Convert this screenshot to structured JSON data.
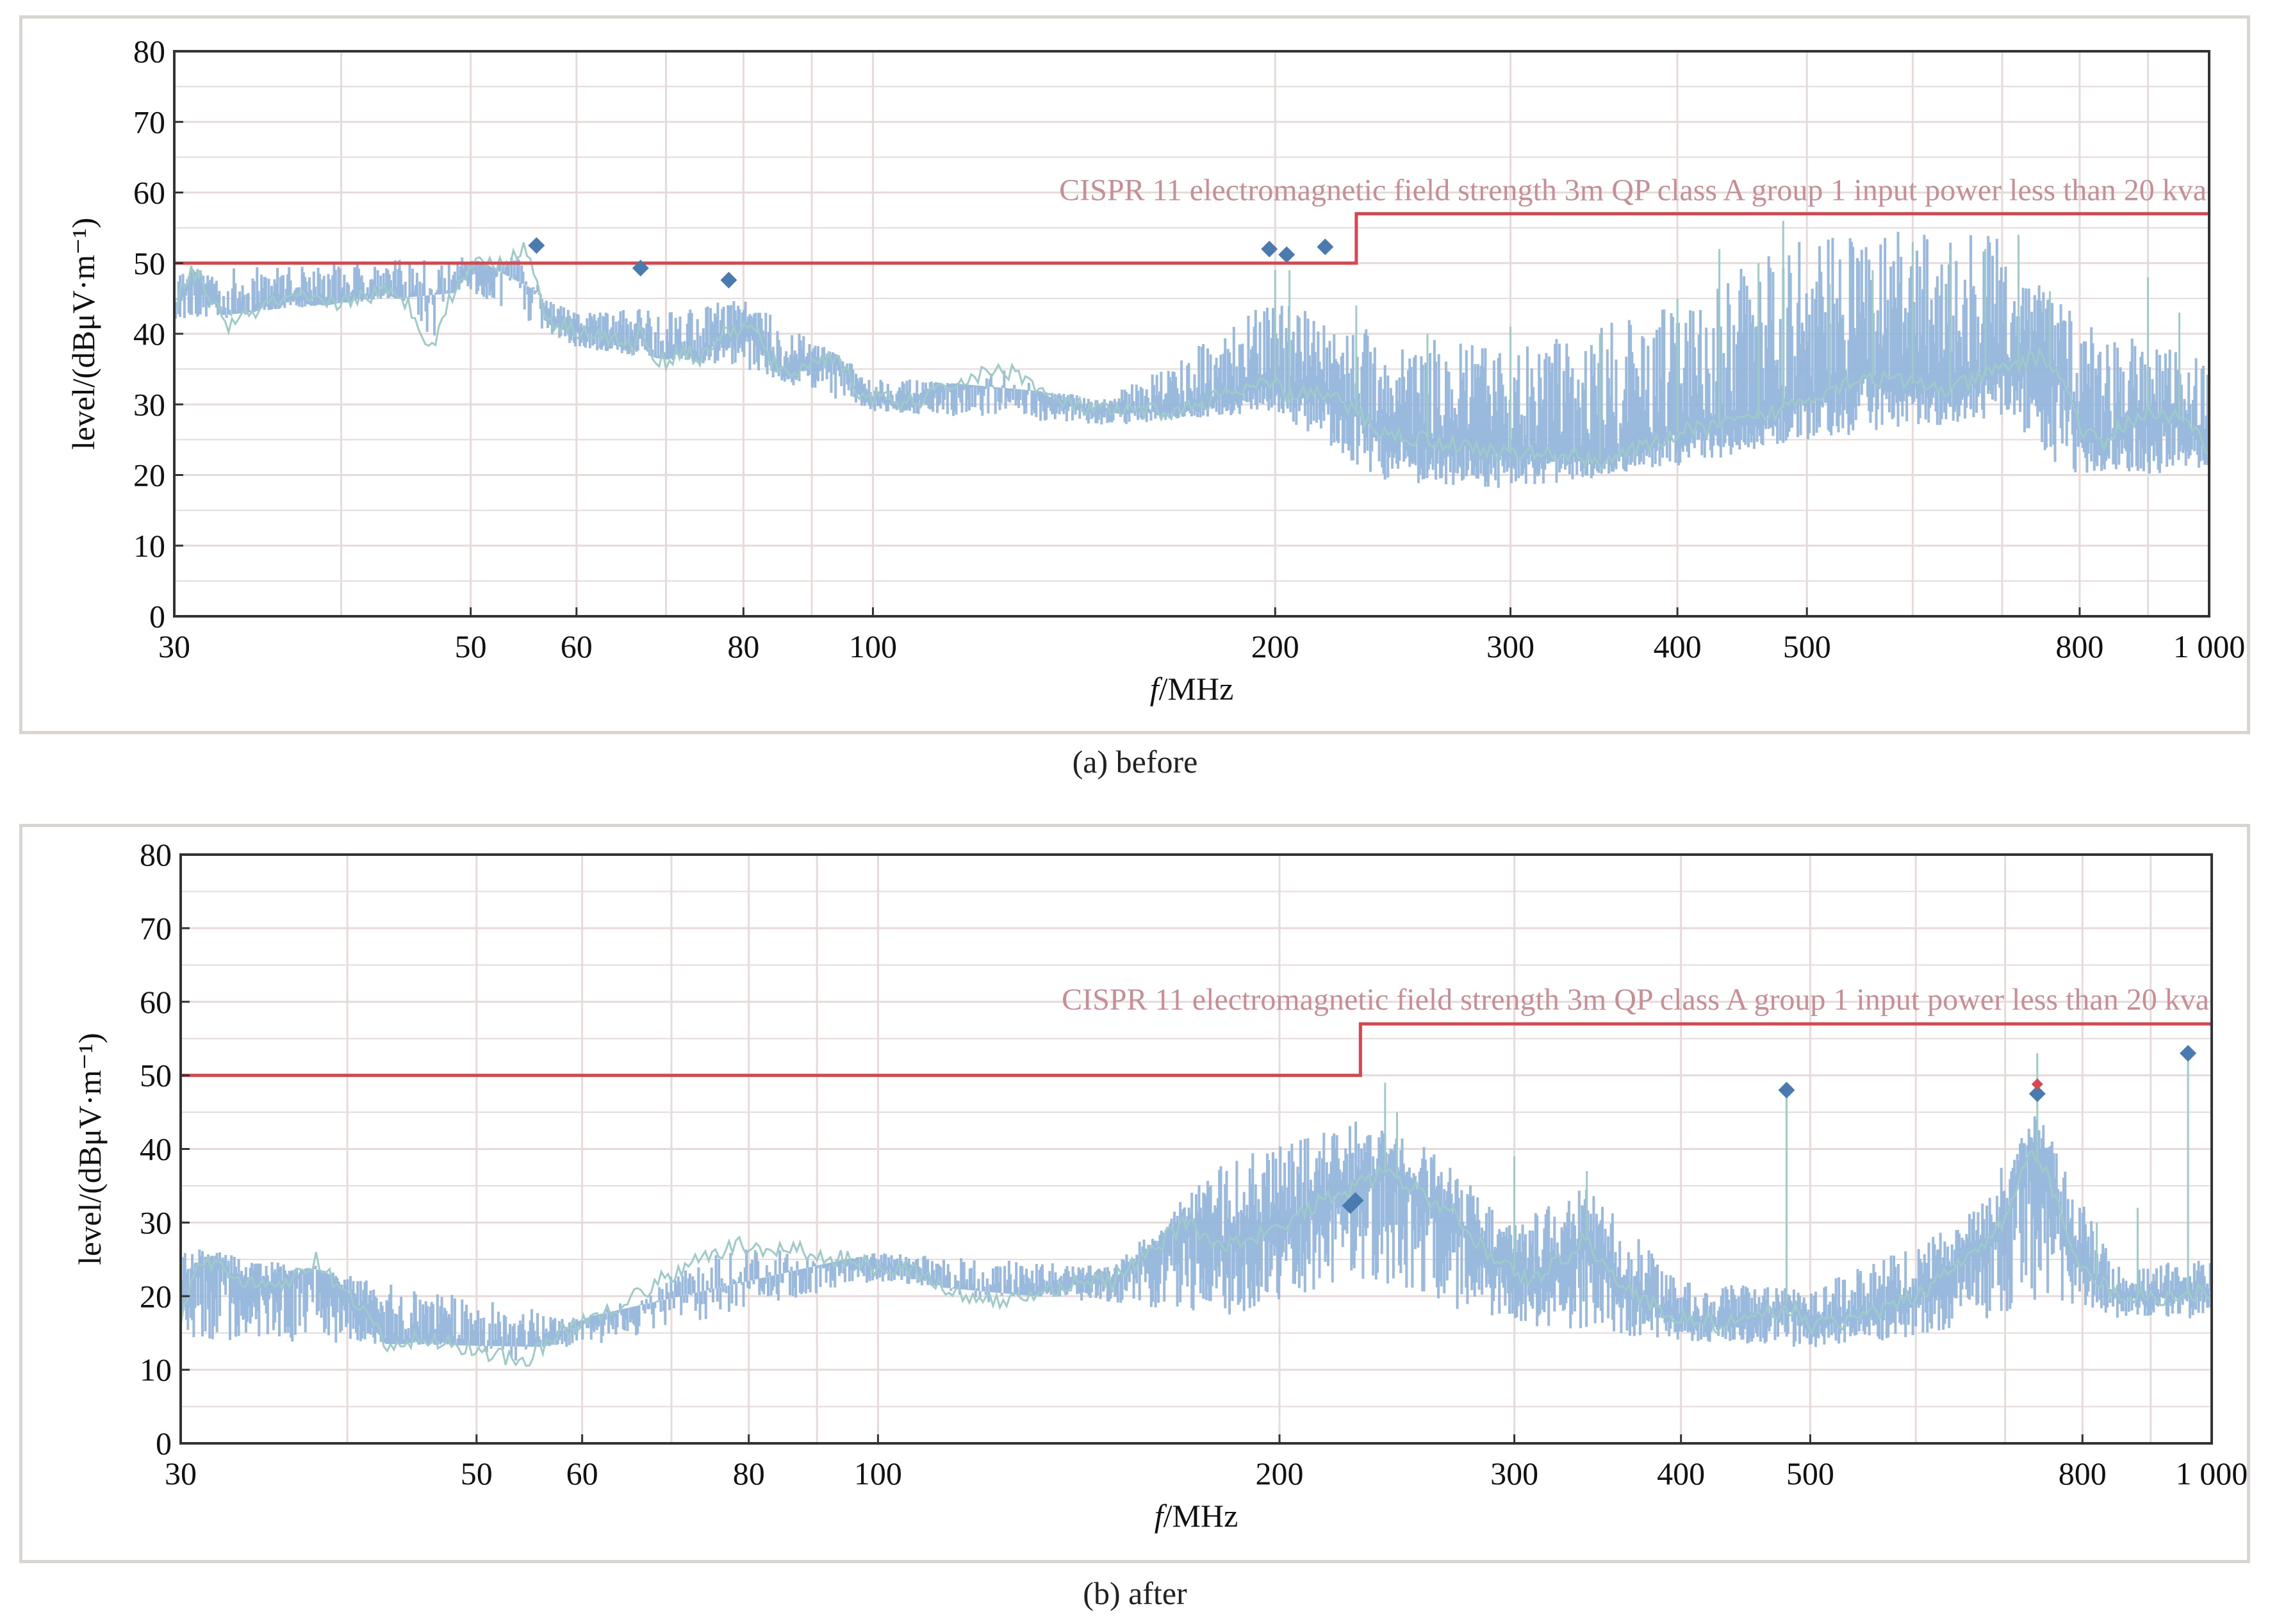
{
  "chart_data": [
    {
      "id": "a",
      "type": "line",
      "caption": "(a) before",
      "xlabel_italic": "f",
      "xlabel_rest": "/MHz",
      "ylabel": "level/(dBμV·m⁻¹)",
      "xscale": "log",
      "xlim": [
        30,
        1000
      ],
      "ylim": [
        0,
        80
      ],
      "xticks": [
        30,
        50,
        60,
        80,
        100,
        200,
        300,
        400,
        500,
        800,
        1000
      ],
      "xtick_labels": [
        "30",
        "50",
        "60",
        "80",
        "100",
        "200",
        "300",
        "400",
        "500",
        "800",
        "1 000"
      ],
      "yticks": [
        0,
        10,
        20,
        30,
        40,
        50,
        60,
        70,
        80
      ],
      "ytick_labels": [
        "0",
        "10",
        "20",
        "30",
        "40",
        "50",
        "60",
        "70",
        "80"
      ],
      "grid": true,
      "limit_label": "CISPR 11 electromagnetic field strength 3m QP class A group 1 input power less than 20 kva",
      "limit_line": [
        [
          30,
          50
        ],
        [
          230,
          50
        ],
        [
          230,
          57
        ],
        [
          1000,
          57
        ]
      ],
      "trace_envelope": [
        [
          30,
          44
        ],
        [
          31,
          49
        ],
        [
          32,
          45
        ],
        [
          33,
          41
        ],
        [
          35,
          44
        ],
        [
          37,
          45
        ],
        [
          39,
          44
        ],
        [
          41,
          45
        ],
        [
          43,
          46
        ],
        [
          45,
          44
        ],
        [
          46,
          40
        ],
        [
          47,
          39
        ],
        [
          48,
          44
        ],
        [
          50,
          50
        ],
        [
          52,
          50
        ],
        [
          54,
          51
        ],
        [
          55,
          52
        ],
        [
          56,
          48
        ],
        [
          57,
          42
        ],
        [
          59,
          41
        ],
        [
          62,
          40
        ],
        [
          64,
          39
        ],
        [
          66,
          38
        ],
        [
          67,
          41
        ],
        [
          68,
          37
        ],
        [
          70,
          36
        ],
        [
          72,
          38
        ],
        [
          74,
          36
        ],
        [
          76,
          39
        ],
        [
          78,
          40
        ],
        [
          80,
          41
        ],
        [
          82,
          40
        ],
        [
          84,
          36
        ],
        [
          86,
          34
        ],
        [
          90,
          36
        ],
        [
          94,
          37
        ],
        [
          97,
          32
        ],
        [
          100,
          31
        ],
        [
          105,
          30
        ],
        [
          110,
          31
        ],
        [
          115,
          33
        ],
        [
          120,
          34
        ],
        [
          125,
          35
        ],
        [
          130,
          34
        ],
        [
          135,
          31
        ],
        [
          140,
          30
        ],
        [
          150,
          29
        ],
        [
          160,
          29
        ],
        [
          170,
          29
        ],
        [
          180,
          31
        ],
        [
          190,
          32
        ],
        [
          200,
          33
        ],
        [
          205,
          31
        ],
        [
          210,
          32
        ],
        [
          220,
          31
        ],
        [
          230,
          29
        ],
        [
          240,
          26
        ],
        [
          260,
          25
        ],
        [
          280,
          24
        ],
        [
          300,
          23
        ],
        [
          330,
          23
        ],
        [
          350,
          22
        ],
        [
          380,
          24
        ],
        [
          400,
          26
        ],
        [
          430,
          27
        ],
        [
          460,
          28
        ],
        [
          500,
          31
        ],
        [
          550,
          34
        ],
        [
          600,
          33
        ],
        [
          640,
          32
        ],
        [
          700,
          35
        ],
        [
          750,
          37
        ],
        [
          780,
          33
        ],
        [
          800,
          27
        ],
        [
          830,
          24
        ],
        [
          860,
          27
        ],
        [
          900,
          29
        ],
        [
          950,
          28
        ],
        [
          1000,
          24
        ]
      ],
      "trace_low": [
        [
          30,
          42
        ],
        [
          50,
          46
        ],
        [
          60,
          38
        ],
        [
          80,
          35
        ],
        [
          100,
          29
        ],
        [
          150,
          27
        ],
        [
          200,
          29
        ],
        [
          240,
          19
        ],
        [
          300,
          18
        ],
        [
          400,
          21
        ],
        [
          500,
          25
        ],
        [
          700,
          28
        ],
        [
          800,
          19
        ],
        [
          1000,
          21
        ]
      ],
      "trace_high": [
        [
          30,
          49
        ],
        [
          50,
          51
        ],
        [
          60,
          43
        ],
        [
          80,
          45
        ],
        [
          100,
          34
        ],
        [
          150,
          31
        ],
        [
          200,
          45
        ],
        [
          240,
          40
        ],
        [
          300,
          38
        ],
        [
          400,
          44
        ],
        [
          500,
          55
        ],
        [
          700,
          54
        ],
        [
          800,
          42
        ],
        [
          1000,
          36
        ]
      ],
      "spikes": [
        [
          200,
          49
        ],
        [
          205,
          49
        ],
        [
          230,
          44
        ],
        [
          260,
          40
        ],
        [
          300,
          41
        ],
        [
          350,
          40
        ],
        [
          400,
          45
        ],
        [
          430,
          52
        ],
        [
          460,
          50
        ],
        [
          480,
          56
        ],
        [
          520,
          47
        ],
        [
          560,
          49
        ],
        [
          600,
          53
        ],
        [
          640,
          52
        ],
        [
          680,
          52
        ],
        [
          720,
          54
        ],
        [
          760,
          46
        ],
        [
          900,
          48
        ],
        [
          950,
          43
        ]
      ],
      "peaks": [
        [
          56,
          52.5
        ],
        [
          67,
          49.3
        ],
        [
          78,
          47.6
        ],
        [
          198,
          52
        ],
        [
          204,
          51.2
        ],
        [
          218,
          52.3
        ]
      ],
      "colors": {
        "limit": "#d9464f",
        "trace": "#8fb3d9",
        "trace_edge": "#9ecac8",
        "marker": "#4a7bb0",
        "grid": "#e6dada"
      }
    },
    {
      "id": "b",
      "type": "line",
      "caption": "(b) after",
      "xlabel_italic": "f",
      "xlabel_rest": "/MHz",
      "ylabel": "level/(dBμV·m⁻¹)",
      "xscale": "log",
      "xlim": [
        30,
        1000
      ],
      "ylim": [
        0,
        80
      ],
      "xticks": [
        30,
        50,
        60,
        80,
        100,
        200,
        300,
        400,
        500,
        800,
        1000
      ],
      "xtick_labels": [
        "30",
        "50",
        "60",
        "80",
        "100",
        "200",
        "300",
        "400",
        "500",
        "800",
        "1 000"
      ],
      "yticks": [
        0,
        10,
        20,
        30,
        40,
        50,
        60,
        70,
        80
      ],
      "ytick_labels": [
        "0",
        "10",
        "20",
        "30",
        "40",
        "50",
        "60",
        "70",
        "80"
      ],
      "grid": true,
      "limit_label": "CISPR 11 electromagnetic field strength 3m QP class A group 1 input power less than 20 kva",
      "limit_line": [
        [
          30,
          50
        ],
        [
          230,
          50
        ],
        [
          230,
          57
        ],
        [
          1000,
          57
        ]
      ],
      "trace_envelope": [
        [
          30,
          17
        ],
        [
          31,
          24
        ],
        [
          32,
          25
        ],
        [
          33,
          22
        ],
        [
          35,
          21
        ],
        [
          37,
          23
        ],
        [
          38,
          25
        ],
        [
          39,
          22
        ],
        [
          41,
          18
        ],
        [
          43,
          13
        ],
        [
          45,
          14
        ],
        [
          47,
          14
        ],
        [
          49,
          13
        ],
        [
          52,
          12
        ],
        [
          54,
          11
        ],
        [
          56,
          13
        ],
        [
          58,
          15
        ],
        [
          62,
          18
        ],
        [
          66,
          20
        ],
        [
          70,
          23
        ],
        [
          74,
          25
        ],
        [
          78,
          27
        ],
        [
          82,
          26
        ],
        [
          86,
          27
        ],
        [
          90,
          25
        ],
        [
          95,
          25
        ],
        [
          100,
          24
        ],
        [
          105,
          24
        ],
        [
          110,
          22
        ],
        [
          115,
          20
        ],
        [
          120,
          19
        ],
        [
          130,
          20
        ],
        [
          140,
          22
        ],
        [
          150,
          22
        ],
        [
          160,
          26
        ],
        [
          170,
          30
        ],
        [
          180,
          27
        ],
        [
          190,
          28
        ],
        [
          200,
          29
        ],
        [
          215,
          33
        ],
        [
          230,
          35
        ],
        [
          240,
          37
        ],
        [
          250,
          35
        ],
        [
          270,
          31
        ],
        [
          290,
          25
        ],
        [
          310,
          22
        ],
        [
          330,
          26
        ],
        [
          340,
          28
        ],
        [
          350,
          24
        ],
        [
          370,
          20
        ],
        [
          400,
          17
        ],
        [
          430,
          16
        ],
        [
          460,
          17
        ],
        [
          480,
          19
        ],
        [
          500,
          16
        ],
        [
          550,
          17
        ],
        [
          600,
          20
        ],
        [
          650,
          25
        ],
        [
          700,
          30
        ],
        [
          730,
          40
        ],
        [
          750,
          37
        ],
        [
          780,
          28
        ],
        [
          800,
          24
        ],
        [
          850,
          20
        ],
        [
          900,
          20
        ],
        [
          950,
          20
        ],
        [
          1000,
          21
        ]
      ],
      "trace_low": [
        [
          30,
          14
        ],
        [
          60,
          13
        ],
        [
          100,
          22
        ],
        [
          150,
          19
        ],
        [
          180,
          17
        ],
        [
          230,
          22
        ],
        [
          300,
          16
        ],
        [
          400,
          14
        ],
        [
          500,
          13
        ],
        [
          650,
          15
        ],
        [
          750,
          20
        ],
        [
          850,
          17
        ],
        [
          1000,
          17
        ]
      ],
      "trace_high": [
        [
          30,
          27
        ],
        [
          60,
          17
        ],
        [
          100,
          26
        ],
        [
          150,
          24
        ],
        [
          180,
          38
        ],
        [
          230,
          44
        ],
        [
          260,
          40
        ],
        [
          300,
          30
        ],
        [
          340,
          35
        ],
        [
          400,
          22
        ],
        [
          500,
          21
        ],
        [
          650,
          30
        ],
        [
          740,
          45
        ],
        [
          850,
          24
        ],
        [
          1000,
          25
        ]
      ],
      "spikes": [
        [
          240,
          49
        ],
        [
          245,
          45
        ],
        [
          300,
          39
        ],
        [
          340,
          37
        ],
        [
          480,
          48
        ],
        [
          740,
          53
        ],
        [
          960,
          54
        ],
        [
          880,
          32
        ],
        [
          820,
          30
        ]
      ],
      "peaks": [
        [
          226,
          32.3
        ],
        [
          228,
          33
        ],
        [
          480,
          48
        ],
        [
          740,
          47.5
        ],
        [
          960,
          53
        ]
      ],
      "peaks_red": [
        [
          740,
          48.8
        ]
      ],
      "colors": {
        "limit": "#d9464f",
        "trace": "#8fb3d9",
        "trace_edge": "#9ecac8",
        "marker": "#4a7bb0",
        "marker_red": "#d9464f",
        "grid": "#e6dada"
      }
    }
  ]
}
